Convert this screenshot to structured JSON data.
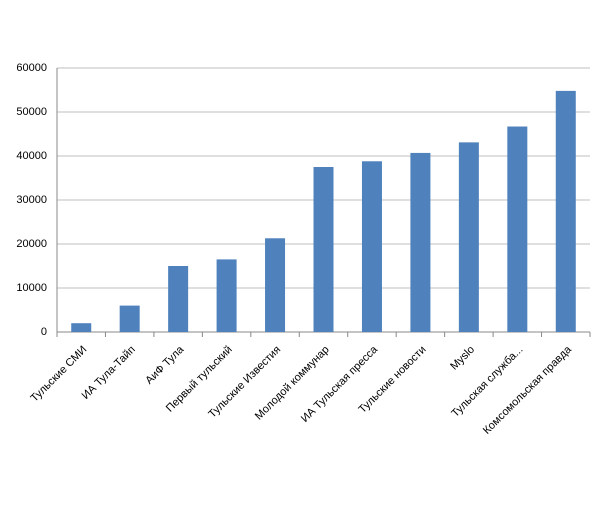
{
  "chart_data": {
    "type": "bar",
    "categories": [
      "Тульские СМИ",
      "ИА Тула-Тайп",
      "АиФ Тула",
      "Первый тульский",
      "Тульские Известия",
      "Молодой коммунар",
      "ИА Тульская пресса",
      "Тульские новости",
      "Myslo",
      "Тульская служба...",
      "Комсомольская правда"
    ],
    "values": [
      2000,
      6000,
      15000,
      16500,
      21300,
      37500,
      38800,
      40700,
      43100,
      46700,
      54800
    ],
    "color": "#4f81bd",
    "ylim": [
      0,
      60000
    ],
    "yticks": [
      0,
      10000,
      20000,
      30000,
      40000,
      50000,
      60000
    ],
    "grid": true
  }
}
